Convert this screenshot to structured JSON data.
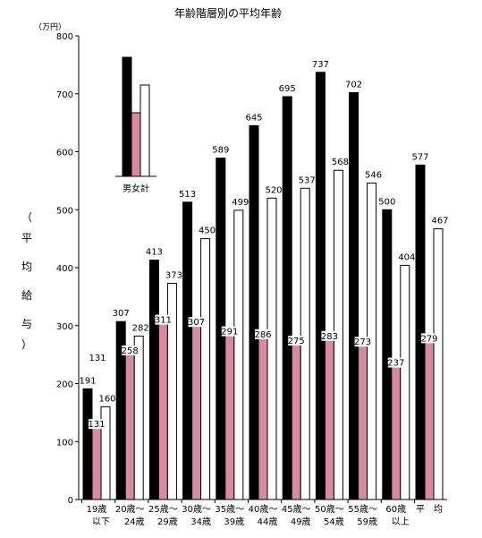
{
  "chart_data": {
    "type": "bar",
    "title": "年齢階層別の平均年齢",
    "unit": "（万円）",
    "ylabel_chars": [
      "（",
      "平",
      "均",
      "給",
      "与",
      "）"
    ],
    "ylim": [
      0,
      800
    ],
    "yticks": [
      "800",
      "700",
      "600",
      "500",
      "400",
      "300",
      "200",
      "100",
      "0"
    ],
    "grid": false,
    "categories": [
      [
        "19歳",
        "以下"
      ],
      [
        "20歳～",
        "24歳"
      ],
      [
        "25歳～",
        "29歳"
      ],
      [
        "30歳～",
        "34歳"
      ],
      [
        "35歳～",
        "39歳"
      ],
      [
        "40歳～",
        "44歳"
      ],
      [
        "45歳～",
        "49歳"
      ],
      [
        "50歳～",
        "54歳"
      ],
      [
        "55歳～",
        "59歳"
      ],
      [
        "60歳",
        "以上"
      ],
      [
        "平　均",
        ""
      ]
    ],
    "series": [
      {
        "name": "男",
        "color": "#000000",
        "values": [
          191,
          307,
          413,
          513,
          589,
          645,
          695,
          737,
          702,
          500,
          577
        ]
      },
      {
        "name": "女",
        "color": "#d88aa0",
        "values": [
          131,
          258,
          311,
          307,
          291,
          286,
          275,
          283,
          273,
          237,
          279
        ]
      },
      {
        "name": "計",
        "color": "#ffffff",
        "values": [
          160,
          282,
          373,
          450,
          499,
          520,
          537,
          568,
          546,
          404,
          467
        ]
      }
    ],
    "value_labels": [
      [
        "191",
        "307",
        "413",
        "513",
        "589",
        "645",
        "695",
        "737",
        "702",
        "500",
        "577"
      ],
      [
        "131",
        "258",
        "311",
        "307",
        "291",
        "286",
        "275",
        "283",
        "273",
        "237",
        "279"
      ],
      [
        "160",
        "282",
        "373",
        "450",
        "499",
        "520",
        "537",
        "568",
        "546",
        "404",
        "467"
      ]
    ],
    "extra_annotation": "131",
    "legend": {
      "label": "男女計",
      "placement": "top-left"
    }
  }
}
